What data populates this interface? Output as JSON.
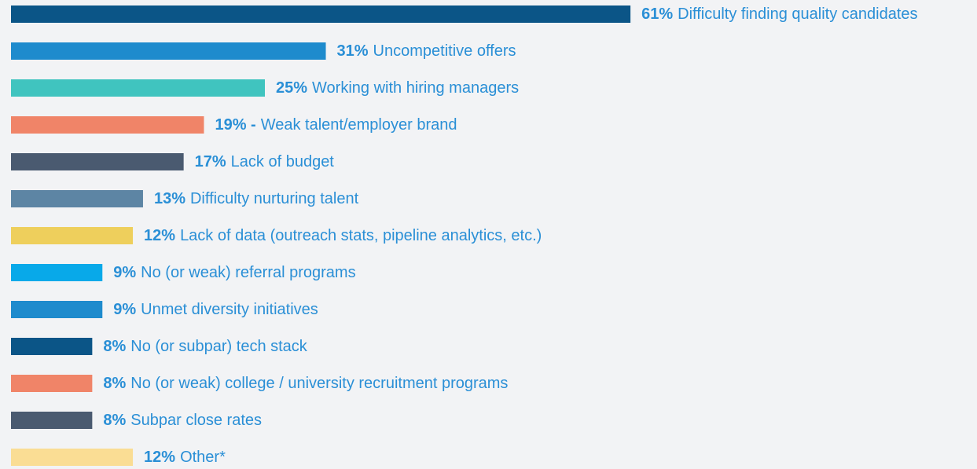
{
  "chart_data": {
    "type": "bar",
    "orientation": "horizontal",
    "categories": [
      "Difficulty finding quality candidates",
      "Uncompetitive offers",
      "Working with hiring managers",
      "Weak talent/employer brand",
      "Lack of budget",
      "Difficulty nurturing talent",
      "Lack of data (outreach stats, pipeline analytics, etc.)",
      "No (or weak) referral programs",
      "Unmet diversity initiatives",
      "No (or subpar) tech stack",
      "No (or weak) college / university recruitment programs",
      "Subpar close rates",
      "Other*"
    ],
    "values": [
      61,
      31,
      25,
      19,
      17,
      13,
      12,
      9,
      9,
      8,
      8,
      8,
      12
    ],
    "value_labels": [
      "61%",
      "31%",
      "25%",
      "19% -",
      "17%",
      "13%",
      "12%",
      "9%",
      "9%",
      "8%",
      "8%",
      "8%",
      "12%"
    ],
    "colors": [
      "#0b5587",
      "#1e8bcd",
      "#40c4bf",
      "#f08468",
      "#4a5a70",
      "#5d85a4",
      "#eecf5c",
      "#08a9e9",
      "#1e8bcd",
      "#0b5587",
      "#f08468",
      "#4a5a70",
      "#fadd94"
    ]
  }
}
